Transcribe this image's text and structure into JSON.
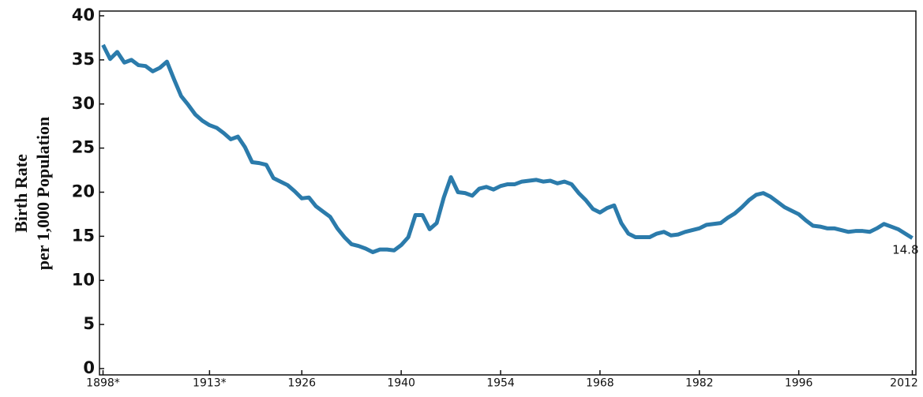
{
  "chart_data": {
    "type": "line",
    "ylabel": [
      "Birth Rate",
      "per 1,000 Population"
    ],
    "x": [
      1898,
      1899,
      1900,
      1901,
      1902,
      1903,
      1904,
      1905,
      1906,
      1907,
      1908,
      1909,
      1910,
      1911,
      1912,
      1913,
      1914,
      1915,
      1916,
      1917,
      1918,
      1919,
      1920,
      1921,
      1922,
      1923,
      1924,
      1925,
      1926,
      1927,
      1928,
      1929,
      1930,
      1931,
      1932,
      1933,
      1934,
      1935,
      1936,
      1937,
      1938,
      1939,
      1940,
      1941,
      1942,
      1943,
      1944,
      1945,
      1946,
      1947,
      1948,
      1949,
      1950,
      1951,
      1952,
      1953,
      1954,
      1955,
      1956,
      1957,
      1958,
      1959,
      1960,
      1961,
      1962,
      1963,
      1964,
      1965,
      1966,
      1967,
      1968,
      1969,
      1970,
      1971,
      1972,
      1973,
      1974,
      1975,
      1976,
      1977,
      1978,
      1979,
      1980,
      1981,
      1982,
      1983,
      1984,
      1985,
      1986,
      1987,
      1988,
      1989,
      1990,
      1991,
      1992,
      1993,
      1994,
      1995,
      1996,
      1997,
      1998,
      1999,
      2000,
      2001,
      2002,
      2003,
      2004,
      2005,
      2006,
      2007,
      2008,
      2009,
      2010,
      2011,
      2012
    ],
    "series": [
      {
        "color": "#2b7bab",
        "values": [
          36.7,
          35.1,
          35.9,
          34.7,
          35.0,
          34.4,
          34.3,
          33.7,
          34.1,
          34.8,
          32.8,
          30.9,
          29.9,
          28.8,
          28.1,
          27.6,
          27.3,
          26.7,
          26.0,
          26.3,
          25.1,
          23.4,
          23.3,
          23.1,
          21.6,
          21.2,
          20.8,
          20.1,
          19.3,
          19.4,
          18.4,
          17.8,
          17.2,
          15.9,
          14.9,
          14.1,
          13.9,
          13.6,
          13.2,
          13.5,
          13.5,
          13.4,
          14.0,
          14.9,
          17.4,
          17.4,
          15.8,
          16.5,
          19.4,
          21.7,
          20.0,
          19.9,
          19.6,
          20.4,
          20.6,
          20.3,
          20.7,
          20.9,
          20.9,
          21.2,
          21.3,
          21.4,
          21.2,
          21.3,
          21.0,
          21.2,
          20.9,
          19.9,
          19.1,
          18.1,
          17.7,
          18.2,
          18.5,
          16.5,
          15.3,
          14.9,
          14.9,
          14.9,
          15.3,
          15.5,
          15.1,
          15.2,
          15.5,
          15.7,
          15.9,
          16.3,
          16.4,
          16.5,
          17.1,
          17.6,
          18.3,
          19.1,
          19.7,
          19.9,
          19.5,
          18.9,
          18.3,
          17.9,
          17.5,
          16.8,
          16.2,
          16.1,
          15.9,
          15.9,
          15.7,
          15.5,
          15.6,
          15.6,
          15.5,
          15.9,
          16.4,
          16.1,
          15.8,
          15.3,
          14.8
        ]
      }
    ],
    "xlim": [
      1897.5,
      2012.5
    ],
    "xticks": [
      {
        "value": 1898,
        "label": "1898*"
      },
      {
        "value": 1913,
        "label": "1913*"
      },
      1926,
      1940,
      1954,
      1968,
      1982,
      1996,
      2012
    ],
    "ylim": [
      0,
      40
    ],
    "yticks": [
      0,
      5,
      10,
      15,
      20,
      25,
      30,
      35,
      40
    ],
    "grid": false
  }
}
